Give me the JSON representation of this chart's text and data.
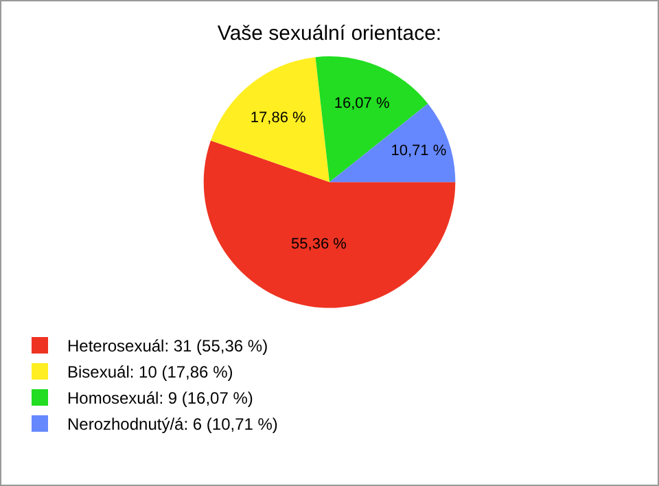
{
  "chart_data": {
    "type": "pie",
    "title": "Vaše sexuální orientace:",
    "categories": [
      "Heterosexuál: 31 (55,36 %)",
      "Bisexuál: 10 (17,86 %)",
      "Homosexuál: 9 (16,07 %)",
      "Nerozhodnutý/á: 6 (10,71 %)"
    ],
    "values": [
      55.36,
      17.86,
      16.07,
      10.71
    ],
    "value_labels": [
      "55,36 %",
      "17,86 %",
      "16,07 %",
      "10,71 %"
    ],
    "colors": [
      "#ee3322",
      "#ffee22",
      "#22dd22",
      "#6688ff"
    ],
    "legend": "bottom left"
  }
}
